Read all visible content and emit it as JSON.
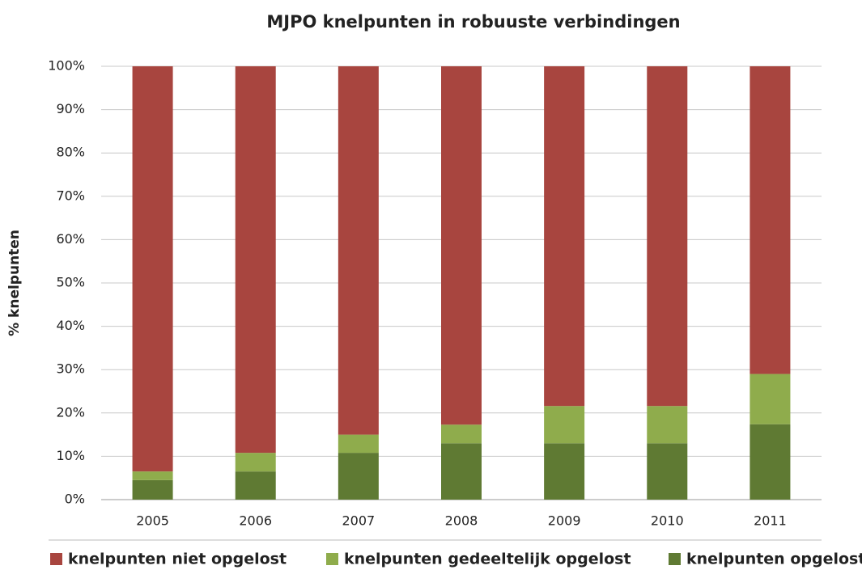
{
  "chart_data": {
    "type": "stacked_bar",
    "title": "MJPO knelpunten in robuuste verbindingen",
    "y_label": "% knelpunten",
    "categories": [
      "2005",
      "2006",
      "2007",
      "2008",
      "2009",
      "2010",
      "2011"
    ],
    "series": [
      {
        "name": "knelpunten niet opgelost",
        "color": "#a8453f",
        "values": [
          93.5,
          89.2,
          85,
          82.7,
          78.4,
          78.4,
          71
        ]
      },
      {
        "name": "knelpunten gedeeltelijk opgelost",
        "color": "#8fac4c",
        "values": [
          2,
          4.3,
          4.2,
          4.3,
          8.6,
          8.6,
          11.6
        ]
      },
      {
        "name": "knelpunten opgelost",
        "color": "#5f7a33",
        "values": [
          4.5,
          6.5,
          10.8,
          13,
          13,
          13,
          17.4
        ]
      }
    ],
    "ylim": [
      0,
      100
    ],
    "yticks": [
      {
        "value": 0,
        "label": "0%"
      },
      {
        "value": 10,
        "label": "10%"
      },
      {
        "value": 20,
        "label": "20%"
      },
      {
        "value": 30,
        "label": "30%"
      },
      {
        "value": 40,
        "label": "40%"
      },
      {
        "value": 50,
        "label": "50%"
      },
      {
        "value": 60,
        "label": "60%"
      },
      {
        "value": 70,
        "label": "70%"
      },
      {
        "value": 80,
        "label": "80%"
      },
      {
        "value": 90,
        "label": "90%"
      },
      {
        "value": 100,
        "label": "100%"
      }
    ],
    "grid": true,
    "legend": "bottom"
  }
}
